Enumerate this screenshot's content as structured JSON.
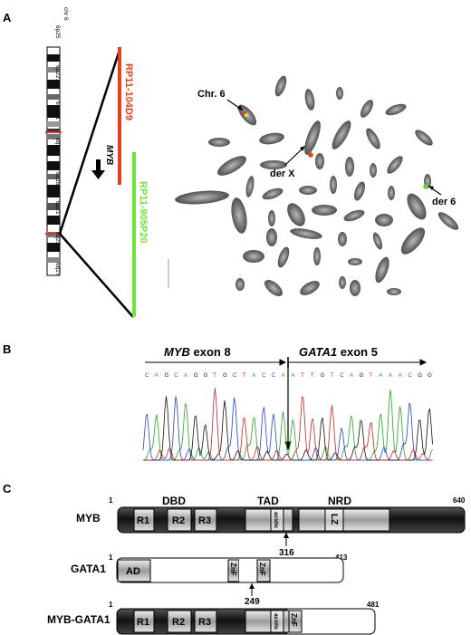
{
  "panels": {
    "a": "A",
    "b": "B",
    "c": "C"
  },
  "panel_a": {
    "ideogram_label": "chr 6",
    "probe1": "RP11-104D9",
    "probe2": "RP11-905P20",
    "gene": "MYB",
    "band_labels": [
      "6p25",
      "6p22.3",
      "6p21.1",
      "6q13",
      "6q16.3",
      "6q21",
      "6q23.3",
      "6q27"
    ],
    "annotations": [
      "Chr. 6",
      "der X",
      "der 6"
    ],
    "colors": {
      "probe1": "#e8401a",
      "probe2": "#6fe63a"
    }
  },
  "panel_b": {
    "exon1": "MYB exon 8",
    "exon2": "GATA1 exon 5",
    "sequence": "CAGCAGGTGCTACCAATTGTCAGTAAACGG",
    "trace_colors": {
      "A": "#22a822",
      "C": "#2244cc",
      "G": "#111111",
      "T": "#cc2222"
    }
  },
  "panel_c": {
    "proteins": [
      {
        "name": "MYB",
        "start": "1",
        "end": "640",
        "mark": "316",
        "regions": [
          "DBD",
          "TAD",
          "NRD"
        ],
        "domains": [
          "R1",
          "R2",
          "R3",
          "acidic",
          "LZ"
        ]
      },
      {
        "name": "GATA1",
        "start": "1",
        "end": "413",
        "mark": "249",
        "domains": [
          "AD",
          "ZnF",
          "ZnF"
        ]
      },
      {
        "name": "MYB-GATA1",
        "start": "1",
        "end": "481",
        "domains": [
          "R1",
          "R2",
          "R3",
          "acidic",
          "ZnF"
        ]
      }
    ]
  }
}
